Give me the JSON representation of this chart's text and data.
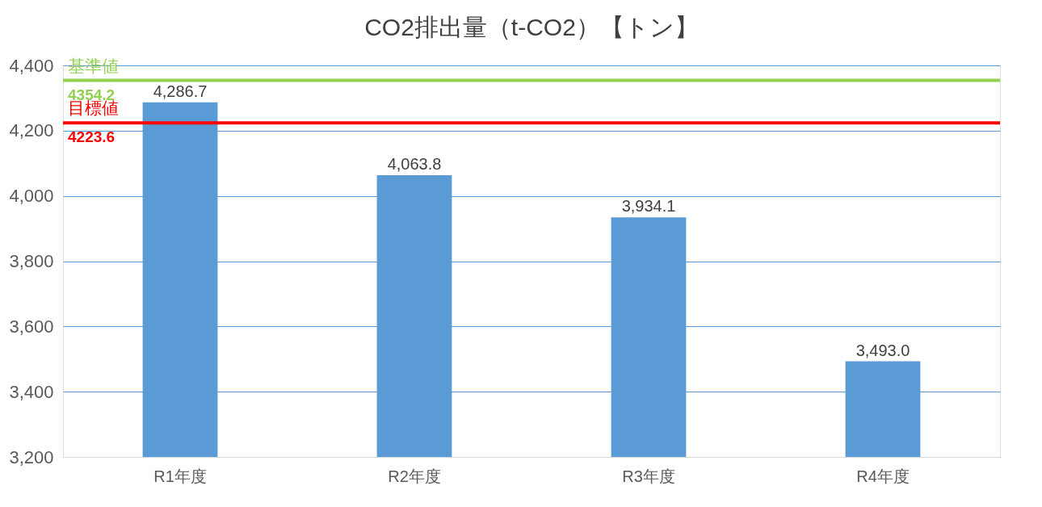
{
  "chart_data": {
    "type": "bar",
    "title": "CO2排出量（t-CO2）【トン】",
    "categories": [
      "R1年度",
      "R2年度",
      "R3年度",
      "R4年度"
    ],
    "values": [
      4286.7,
      4063.8,
      3934.1,
      3493.0
    ],
    "color": "#5b9bd5",
    "value_labels": [
      "4,286.7",
      "4,063.8",
      "3,934.1",
      "3,493.0"
    ],
    "ylim": [
      3200,
      4400
    ],
    "yticks": [
      {
        "value": 3200,
        "label": "3,200"
      },
      {
        "value": 3400,
        "label": "3,400"
      },
      {
        "value": 3600,
        "label": "3,600"
      },
      {
        "value": 3800,
        "label": "3,800"
      },
      {
        "value": 4000,
        "label": "4,000"
      },
      {
        "value": 4200,
        "label": "4,200"
      },
      {
        "value": 4400,
        "label": "4,400"
      }
    ],
    "grid": "y",
    "ref_lines": [
      {
        "axis": "y",
        "value": 4354.2,
        "label": "基準値",
        "color": "#92d050"
      },
      {
        "axis": "y",
        "value": 4223.6,
        "label": "目標値",
        "color": "#ff0000"
      }
    ],
    "annotations": [
      {
        "text": "4354.2",
        "y": 4354.2
      },
      {
        "text": "4223.6",
        "y": 4223.6
      }
    ]
  }
}
